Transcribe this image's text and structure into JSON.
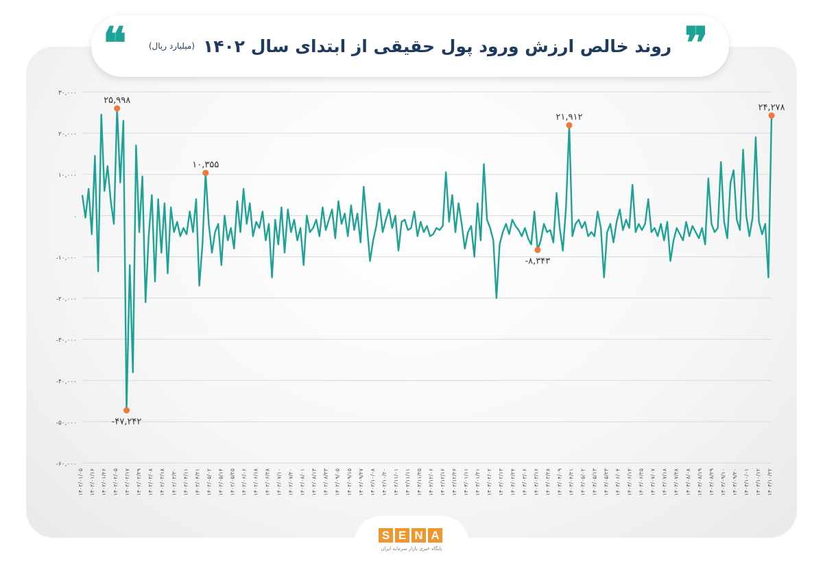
{
  "header": {
    "title": "روند خالص ارزش ورود پول حقیقی از ابتدای سال ۱۴۰۲",
    "unit": "(میلیارد ریال)",
    "quote_icon_left": "quote-open-icon",
    "quote_icon_right": "quote-close-icon"
  },
  "logo": {
    "letters": [
      "S",
      "E",
      "N",
      "A"
    ],
    "tagline": "پایگاه خبری بازار سرمایه ایران"
  },
  "colors": {
    "line": "#1fa296",
    "marker": "#f07a3a",
    "axis_text": "#555555",
    "grid": "#d9d9d9",
    "title": "#1e3a5f"
  },
  "chart_data": {
    "type": "line",
    "title": "روند خالص ارزش ورود پول حقیقی از ابتدای سال ۱۴۰۲",
    "ylabel": "",
    "xlabel": "",
    "ylim": [
      -60000,
      30000
    ],
    "yticks": [
      30000,
      20000,
      10000,
      0,
      -10000,
      -20000,
      -30000,
      -40000,
      -50000,
      -60000
    ],
    "ytick_labels": [
      "۳۰,۰۰۰",
      "۲۰,۰۰۰",
      "۱۰,۰۰۰",
      "۰",
      "-۱۰,۰۰۰",
      "-۲۰,۰۰۰",
      "-۳۰,۰۰۰",
      "-۴۰,۰۰۰",
      "-۵۰,۰۰۰",
      "-۶۰,۰۰۰"
    ],
    "grid": true,
    "x_tick_labels": [
      "۱۴۰۲/۰۱/۰۵",
      "۱۴۰۲/۰۱/۱۶",
      "۱۴۰۲/۰۱/۲۶",
      "۱۴۰۲/۰۲/۰۵",
      "۱۴۰۲/۰۲/۱۷",
      "۱۴۰۲/۰۲/۲۹",
      "۱۴۰۲/۰۳/۰۸",
      "۱۴۰۲/۰۳/۱۸",
      "۱۴۰۲/۰۳/۳۰",
      "۱۴۰۲/۰۴/۱۱",
      "۱۴۰۲/۰۴/۲۱",
      "۱۴۰۲/۰۵/۰۲",
      "۱۴۰۲/۰۵/۱۴",
      "۱۴۰۲/۰۵/۲۵",
      "۱۴۰۲/۰۶/۰۶",
      "۱۴۰۲/۰۶/۱۸",
      "۱۴۰۲/۰۶/۲۸",
      "۱۴۰۲/۰۷/۱۰",
      "۱۴۰۲/۰۷/۲۰",
      "۱۴۰۲/۰۸/۰۱",
      "۱۴۰۲/۰۸/۱۳",
      "۱۴۰۲/۰۸/۲۳",
      "۱۴۰۲/۰۹/۰۵",
      "۱۴۰۲/۰۹/۱۵",
      "۱۴۰۲/۰۹/۲۷",
      "۱۴۰۲/۱۰/۰۸",
      "۱۴۰۲/۱۰/۲۰",
      "۱۴۰۲/۱۱/۰۱",
      "۱۴۰۲/۱۱/۱۱",
      "۱۴۰۲/۱۱/۲۵",
      "۱۴۰۲/۱۲/۰۶",
      "۱۴۰۲/۱۲/۱۶",
      "۱۴۰۲/۱۲/۲۶",
      "۱۴۰۳/۰۱/۱۱",
      "۱۴۰۳/۰۱/۲۱",
      "۱۴۰۳/۰۲/۰۲",
      "۱۴۰۳/۰۲/۱۳",
      "۱۴۰۳/۰۲/۲۴",
      "۱۴۰۳/۰۳/۰۶",
      "۱۴۰۳/۰۳/۱۶",
      "۱۴۰۳/۰۳/۲۸",
      "۱۴۰۳/۰۴/۰۹",
      "۱۴۰۳/۰۴/۲۱",
      "۱۴۰۳/۰۵/۰۲",
      "۱۴۰۳/۰۵/۱۳",
      "۱۴۰۳/۰۵/۲۳",
      "۱۴۰۳/۰۶/۰۴",
      "۱۴۰۳/۰۶/۱۴",
      "۱۴۰۳/۰۶/۲۵",
      "۱۴۰۳/۰۷/۰۷",
      "۱۴۰۳/۰۷/۱۸",
      "۱۴۰۳/۰۷/۲۸",
      "۱۴۰۳/۰۸/۰۸",
      "۱۴۰۳/۰۸/۱۹",
      "۱۴۰۳/۰۸/۲۹",
      "۱۴۰۳/۰۹/۱۰",
      "۱۴۰۳/۰۹/۲۰",
      "۱۴۰۳/۱۰/۰۱",
      "۱۴۰۳/۱۰/۱۲",
      "۱۴۰۳/۱۰/۲۲"
    ],
    "series": [
      {
        "values": [
          5000,
          -500,
          6500,
          -4500,
          14500,
          -13500,
          24500,
          6000,
          12000,
          3500,
          -2000,
          25998,
          8000,
          23000,
          -47242,
          -12000,
          -38000,
          17000,
          -4000,
          9500,
          -21000,
          -5000,
          5000,
          -16000,
          4000,
          -9000,
          3000,
          -14000,
          2000,
          -4000,
          -1500,
          -5000,
          -3000,
          -4500,
          1000,
          -4000,
          4000,
          -17000,
          -7000,
          10355,
          -2000,
          -9000,
          -4000,
          -2000,
          -12000,
          0,
          -6000,
          -3000,
          -8000,
          3500,
          -4000,
          6500,
          -2000,
          3000,
          -5000,
          -1500,
          -3000,
          1000,
          -6000,
          -2000,
          -15000,
          -1000,
          -7000,
          2000,
          -9000,
          1500,
          -4000,
          -1000,
          -6000,
          -3000,
          -12000,
          0,
          -4000,
          -3000,
          -1000,
          -5000,
          2000,
          -3500,
          -1000,
          1500,
          -5500,
          3500,
          -2000,
          500,
          -5000,
          2500,
          -3500,
          500,
          -6500,
          7000,
          -2000,
          -11000,
          -6000,
          -2500,
          3000,
          -4000,
          -1000,
          1500,
          -3000,
          0,
          -8500,
          -1500,
          -1000,
          -3500,
          -3000,
          1000,
          -5000,
          -1500,
          -4000,
          -2500,
          -5000,
          -4500,
          -3000,
          -3500,
          -2500,
          10500,
          -1500,
          5000,
          -4000,
          3000,
          -2000,
          -8000,
          -4000,
          -2500,
          -10000,
          3000,
          -6000,
          12500,
          -1000,
          -3000,
          -6000,
          -20000,
          -7000,
          -4000,
          -2000,
          -4500,
          -1000,
          -2500,
          -3500,
          -5000,
          -3000,
          -5500,
          -7000,
          1000,
          -8343,
          -6000,
          -2000,
          -4000,
          -3500,
          -6500,
          5500,
          -3000,
          -8500,
          2000,
          21912,
          -5000,
          -2000,
          -1000,
          -3000,
          -1500,
          -5000,
          -4000,
          -5000,
          1000,
          -3000,
          -15000,
          -4000,
          -2000,
          -6500,
          -1500,
          1500,
          -3500,
          -1000,
          -3000,
          7500,
          -4000,
          -2000,
          -3500,
          -2000,
          4000,
          -4000,
          -3000,
          -5000,
          -2000,
          -6000,
          -1500,
          -11000,
          -6000,
          -3000,
          -4500,
          -6000,
          -1500,
          -5000,
          -2500,
          -4000,
          -5500,
          -3000,
          -7000,
          9000,
          -2000,
          -4000,
          -3000,
          13000,
          -1500,
          -5500,
          8000,
          11000,
          -1000,
          -3500,
          16000,
          0,
          -5000,
          -500,
          19000,
          -1500,
          -4500,
          -2000,
          -15000,
          24278
        ]
      }
    ],
    "annotations": [
      {
        "label": "۲۵,۹۹۸",
        "value": 25998
      },
      {
        "label": "-۴۷,۲۴۲",
        "value": -47242
      },
      {
        "label": "۱۰,۳۵۵",
        "value": 10355
      },
      {
        "label": "-۸,۳۴۳",
        "value": -8343
      },
      {
        "label": "۲۱,۹۱۲",
        "value": 21912
      },
      {
        "label": "۲۴,۲۷۸",
        "value": 24278
      }
    ]
  }
}
